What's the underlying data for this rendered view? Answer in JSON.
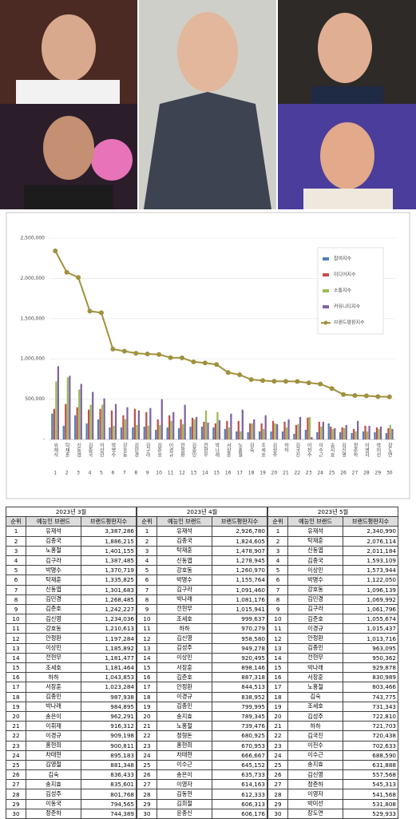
{
  "chart_data": {
    "type": "bar",
    "categories": [
      "유재석",
      "탁재훈",
      "신동엽",
      "김종국",
      "이상민",
      "박명수",
      "강호동",
      "김민경",
      "김구라",
      "김준호",
      "이경규",
      "안정환",
      "김종민",
      "전현무",
      "박나래",
      "서장훈",
      "노홍철",
      "김숙",
      "조세호",
      "김성주",
      "하하",
      "김국진",
      "이천수",
      "이수근",
      "송지효",
      "김신영",
      "정준하",
      "이영자",
      "박미선",
      "장도연"
    ],
    "category_numbers": [
      1,
      2,
      3,
      4,
      5,
      6,
      7,
      8,
      9,
      10,
      11,
      12,
      13,
      14,
      15,
      16,
      17,
      18,
      19,
      20,
      21,
      22,
      23,
      24,
      25,
      26,
      27,
      28,
      29,
      30
    ],
    "series": [
      {
        "name": "참여지수",
        "type": "bar",
        "color": "#4f81bd",
        "values": [
          320000,
          170000,
          300000,
          200000,
          250000,
          150000,
          150000,
          150000,
          160000,
          120000,
          150000,
          140000,
          160000,
          160000,
          150000,
          130000,
          100000,
          90000,
          100000,
          100000,
          100000,
          70000,
          120000,
          90000,
          200000,
          90000,
          80000,
          100000,
          90000,
          80000
        ]
      },
      {
        "name": "미디어지수",
        "type": "bar",
        "color": "#c0504d",
        "values": [
          380000,
          440000,
          400000,
          370000,
          380000,
          360000,
          300000,
          380000,
          340000,
          250000,
          300000,
          250000,
          270000,
          220000,
          200000,
          230000,
          230000,
          200000,
          200000,
          230000,
          220000,
          180000,
          270000,
          220000,
          160000,
          150000,
          130000,
          170000,
          150000,
          140000
        ]
      },
      {
        "name": "소통지수",
        "type": "bar",
        "color": "#9bbb59",
        "values": [
          720000,
          770000,
          620000,
          430000,
          430000,
          170000,
          250000,
          180000,
          170000,
          180000,
          230000,
          190000,
          250000,
          360000,
          340000,
          150000,
          100000,
          200000,
          130000,
          200000,
          150000,
          190000,
          280000,
          160000,
          130000,
          140000,
          100000,
          100000,
          130000,
          180000
        ]
      },
      {
        "name": "커뮤니티지수",
        "type": "bar",
        "color": "#8064a2",
        "values": [
          910000,
          790000,
          690000,
          590000,
          510000,
          440000,
          400000,
          360000,
          390000,
          500000,
          340000,
          430000,
          280000,
          210000,
          240000,
          320000,
          370000,
          250000,
          300000,
          190000,
          250000,
          280000,
          30000,
          220000,
          140000,
          180000,
          230000,
          170000,
          160000,
          130000
        ]
      },
      {
        "name": "브랜드평판지수",
        "type": "line",
        "color": "#a0913d",
        "values": [
          2340990,
          2076114,
          2011184,
          1593109,
          1573944,
          1122050,
          1096139,
          1069992,
          1061796,
          1055674,
          1015437,
          1013716,
          963095,
          950362,
          929878,
          830989,
          803466,
          743775,
          731343,
          722810,
          721703,
          720438,
          702633,
          688590,
          631888,
          557568,
          545313,
          541568,
          531808,
          529933
        ]
      }
    ],
    "ylim": [
      0,
      2500000
    ],
    "yticks": [
      {
        "value": 0,
        "label": "-"
      },
      {
        "value": 500000,
        "label": "500,000"
      },
      {
        "value": 1000000,
        "label": "1,000,000"
      },
      {
        "value": 1500000,
        "label": "1,500,000"
      },
      {
        "value": 2000000,
        "label": "2,000,000"
      },
      {
        "value": 2500000,
        "label": "2,500,000"
      }
    ],
    "grid": true,
    "legend": "upper right"
  },
  "table": {
    "columns": [
      "순위",
      "예능인 브랜드",
      "브랜드평판지수"
    ],
    "months": [
      {
        "title": "2023년 3월",
        "rows": [
          [
            1,
            "유재석",
            "3,387,286"
          ],
          [
            2,
            "김종국",
            "1,886,215"
          ],
          [
            3,
            "노홍철",
            "1,401,155"
          ],
          [
            4,
            "김구라",
            "1,387,485"
          ],
          [
            5,
            "박명수",
            "1,370,719"
          ],
          [
            6,
            "탁재훈",
            "1,335,825"
          ],
          [
            7,
            "신동엽",
            "1,301,683"
          ],
          [
            8,
            "김민경",
            "1,268,485"
          ],
          [
            9,
            "김준호",
            "1,242,227"
          ],
          [
            10,
            "김신영",
            "1,234,036"
          ],
          [
            11,
            "강호동",
            "1,210,613"
          ],
          [
            12,
            "안정환",
            "1,197,284"
          ],
          [
            13,
            "이상민",
            "1,185,892"
          ],
          [
            14,
            "전현무",
            "1,181,477"
          ],
          [
            15,
            "조세호",
            "1,181,464"
          ],
          [
            16,
            "하하",
            "1,043,853"
          ],
          [
            17,
            "서장훈",
            "1,023,284"
          ],
          [
            18,
            "김종민",
            "987,938"
          ],
          [
            19,
            "박나래",
            "984,895"
          ],
          [
            20,
            "송은이",
            "962,291"
          ],
          [
            21,
            "이휘재",
            "916,312"
          ],
          [
            22,
            "이경규",
            "909,198"
          ],
          [
            23,
            "홍현희",
            "900,811"
          ],
          [
            24,
            "차태현",
            "895,183"
          ],
          [
            25,
            "김영철",
            "881,348"
          ],
          [
            26,
            "김숙",
            "836,433"
          ],
          [
            27,
            "송지효",
            "835,601"
          ],
          [
            28,
            "김성주",
            "801,768"
          ],
          [
            29,
            "이동국",
            "794,565"
          ],
          [
            30,
            "정준하",
            "744,389"
          ]
        ]
      },
      {
        "title": "2023년 4월",
        "rows": [
          [
            1,
            "유재석",
            "2,926,780"
          ],
          [
            2,
            "김종국",
            "1,824,605"
          ],
          [
            3,
            "탁재훈",
            "1,478,907"
          ],
          [
            4,
            "신동엽",
            "1,278,945"
          ],
          [
            5,
            "강호동",
            "1,260,970"
          ],
          [
            6,
            "박명수",
            "1,155,764"
          ],
          [
            7,
            "김구라",
            "1,091,460"
          ],
          [
            8,
            "박나래",
            "1,081,176"
          ],
          [
            9,
            "전현무",
            "1,015,941"
          ],
          [
            10,
            "조세호",
            "999,637"
          ],
          [
            11,
            "하하",
            "970,279"
          ],
          [
            12,
            "김신영",
            "958,580"
          ],
          [
            13,
            "김성주",
            "949,278"
          ],
          [
            14,
            "이상민",
            "920,495"
          ],
          [
            15,
            "서장훈",
            "898,146"
          ],
          [
            16,
            "김준호",
            "887,318"
          ],
          [
            17,
            "안정환",
            "844,513"
          ],
          [
            18,
            "이경규",
            "838,952"
          ],
          [
            19,
            "김종민",
            "799,995"
          ],
          [
            20,
            "송지효",
            "789,345"
          ],
          [
            21,
            "노홍철",
            "739,476"
          ],
          [
            22,
            "정형돈",
            "680,925"
          ],
          [
            23,
            "홍현희",
            "670,953"
          ],
          [
            24,
            "차태현",
            "666,667"
          ],
          [
            25,
            "이수근",
            "645,152"
          ],
          [
            26,
            "송은이",
            "635,733"
          ],
          [
            27,
            "이영자",
            "614,163"
          ],
          [
            28,
            "김동현",
            "612,333"
          ],
          [
            29,
            "김희철",
            "606,313"
          ],
          [
            30,
            "윤종신",
            "606,176"
          ]
        ]
      },
      {
        "title": "2023년 5월",
        "rows": [
          [
            1,
            "유재석",
            "2,340,990"
          ],
          [
            2,
            "탁재훈",
            "2,076,114"
          ],
          [
            3,
            "신동엽",
            "2,011,184"
          ],
          [
            4,
            "김종국",
            "1,593,109"
          ],
          [
            5,
            "이상민",
            "1,573,944"
          ],
          [
            6,
            "박명수",
            "1,122,050"
          ],
          [
            7,
            "강호동",
            "1,096,139"
          ],
          [
            8,
            "김민경",
            "1,069,992"
          ],
          [
            9,
            "김구라",
            "1,061,796"
          ],
          [
            10,
            "김준호",
            "1,055,674"
          ],
          [
            11,
            "이경규",
            "1,015,437"
          ],
          [
            12,
            "안정환",
            "1,013,716"
          ],
          [
            13,
            "김종민",
            "963,095"
          ],
          [
            14,
            "전현무",
            "950,362"
          ],
          [
            15,
            "박나래",
            "929,878"
          ],
          [
            16,
            "서장훈",
            "830,989"
          ],
          [
            17,
            "노홍철",
            "803,466"
          ],
          [
            18,
            "김숙",
            "743,775"
          ],
          [
            19,
            "조세호",
            "731,343"
          ],
          [
            20,
            "김성주",
            "722,810"
          ],
          [
            21,
            "하하",
            "721,703"
          ],
          [
            22,
            "김국진",
            "720,438"
          ],
          [
            23,
            "이천수",
            "702,633"
          ],
          [
            24,
            "이수근",
            "688,590"
          ],
          [
            25,
            "송지효",
            "631,888"
          ],
          [
            26,
            "김신영",
            "557,568"
          ],
          [
            27,
            "정준하",
            "545,313"
          ],
          [
            28,
            "이영자",
            "541,568"
          ],
          [
            29,
            "박미선",
            "531,808"
          ],
          [
            30,
            "장도연",
            "529,933"
          ]
        ]
      }
    ]
  }
}
